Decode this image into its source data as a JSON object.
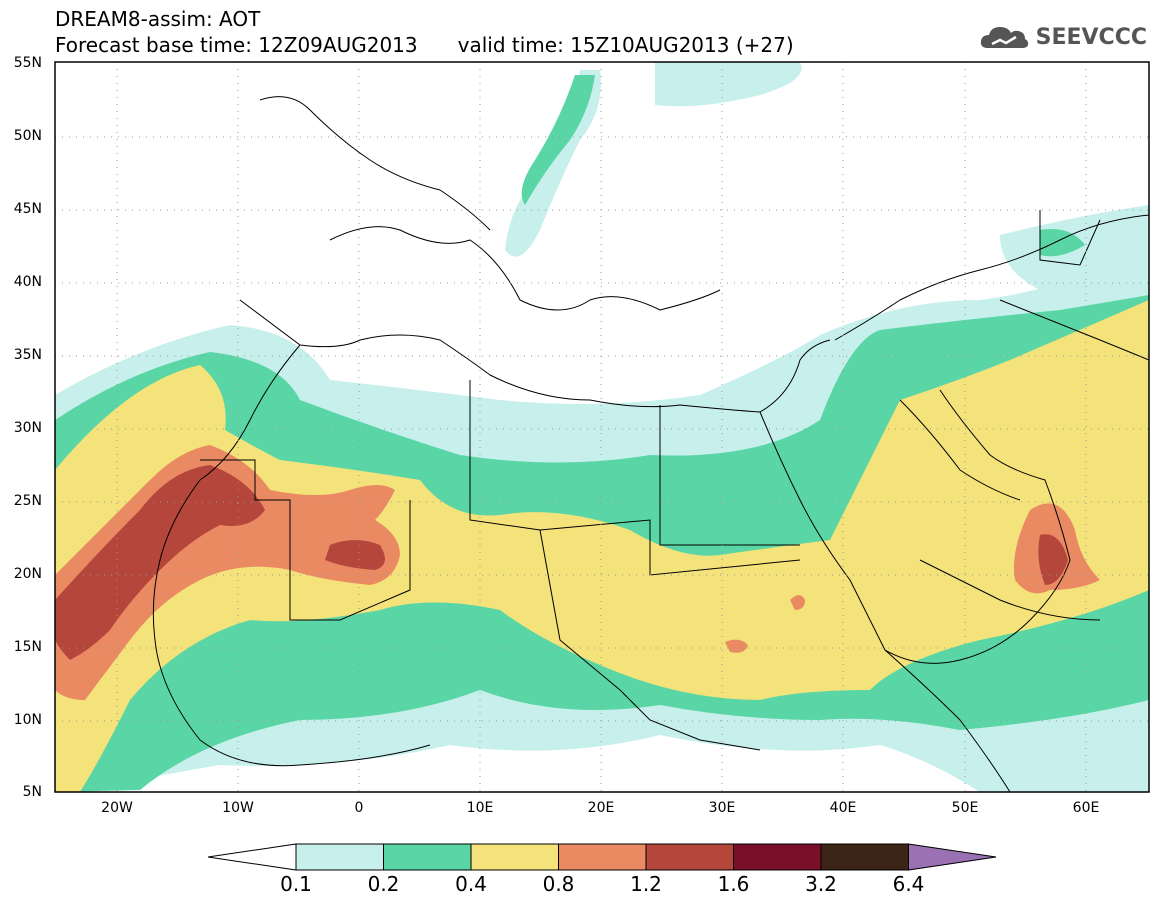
{
  "title": {
    "line1": "DREAM8-assim: AOT",
    "base_time": "Forecast base time: 12Z09AUG2013",
    "valid_time": "valid time: 15Z10AUG2013 (+27)"
  },
  "logo": {
    "text": "SEEVCCC",
    "icon": "cloud-icon"
  },
  "axes": {
    "lat_labels": [
      "55N",
      "50N",
      "45N",
      "40N",
      "35N",
      "30N",
      "25N",
      "20N",
      "15N",
      "10N",
      "5N"
    ],
    "lon_labels": [
      "20W",
      "10W",
      "0",
      "10E",
      "20E",
      "30E",
      "40E",
      "50E",
      "60E"
    ]
  },
  "colorbar": {
    "levels": [
      "0.1",
      "0.2",
      "0.4",
      "0.8",
      "1.2",
      "1.6",
      "3.2",
      "6.4"
    ],
    "colors": [
      "#c7f0ec",
      "#5ad6a6",
      "#f4e27a",
      "#ea8a63",
      "#b5463c",
      "#7a0f2a",
      "#3c2416",
      "#9a72b4"
    ],
    "under_color": "#ffffff"
  }
}
